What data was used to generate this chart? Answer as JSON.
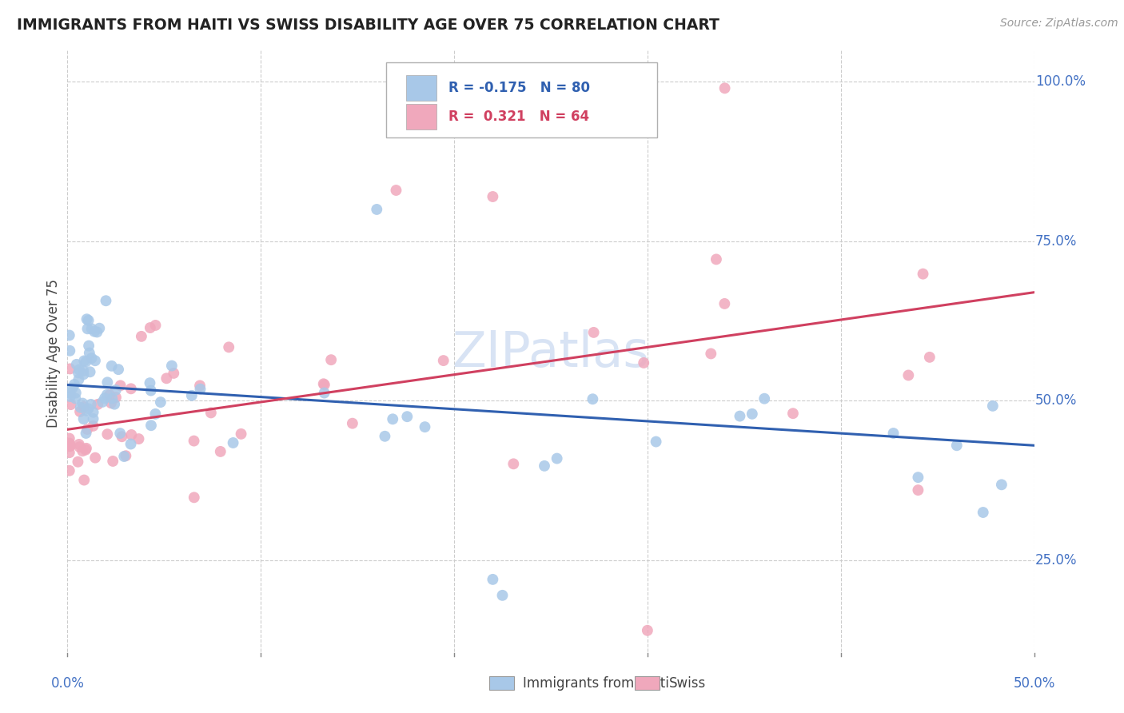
{
  "title": "IMMIGRANTS FROM HAITI VS SWISS DISABILITY AGE OVER 75 CORRELATION CHART",
  "source": "Source: ZipAtlas.com",
  "ylabel": "Disability Age Over 75",
  "xlim": [
    0.0,
    0.5
  ],
  "ylim": [
    0.1,
    1.05
  ],
  "ytick_vals": [
    0.25,
    0.5,
    0.75,
    1.0
  ],
  "ytick_labels": [
    "25.0%",
    "50.0%",
    "75.0%",
    "100.0%"
  ],
  "grid_color": "#cccccc",
  "background_color": "#ffffff",
  "haiti_color": "#a8c8e8",
  "swiss_color": "#f0a8bc",
  "haiti_line_color": "#3060b0",
  "swiss_line_color": "#d04060",
  "haiti_R": -0.175,
  "haiti_N": 80,
  "swiss_R": 0.321,
  "swiss_N": 64,
  "legend_haiti_label": "Immigrants from Haiti",
  "legend_swiss_label": "Swiss",
  "title_color": "#222222",
  "axis_label_color": "#4472c4",
  "watermark_color": "#c8d8f0",
  "marker_size": 100,
  "haiti_line_y0": 0.525,
  "haiti_line_y1": 0.43,
  "swiss_line_y0": 0.455,
  "swiss_line_y1": 0.67
}
